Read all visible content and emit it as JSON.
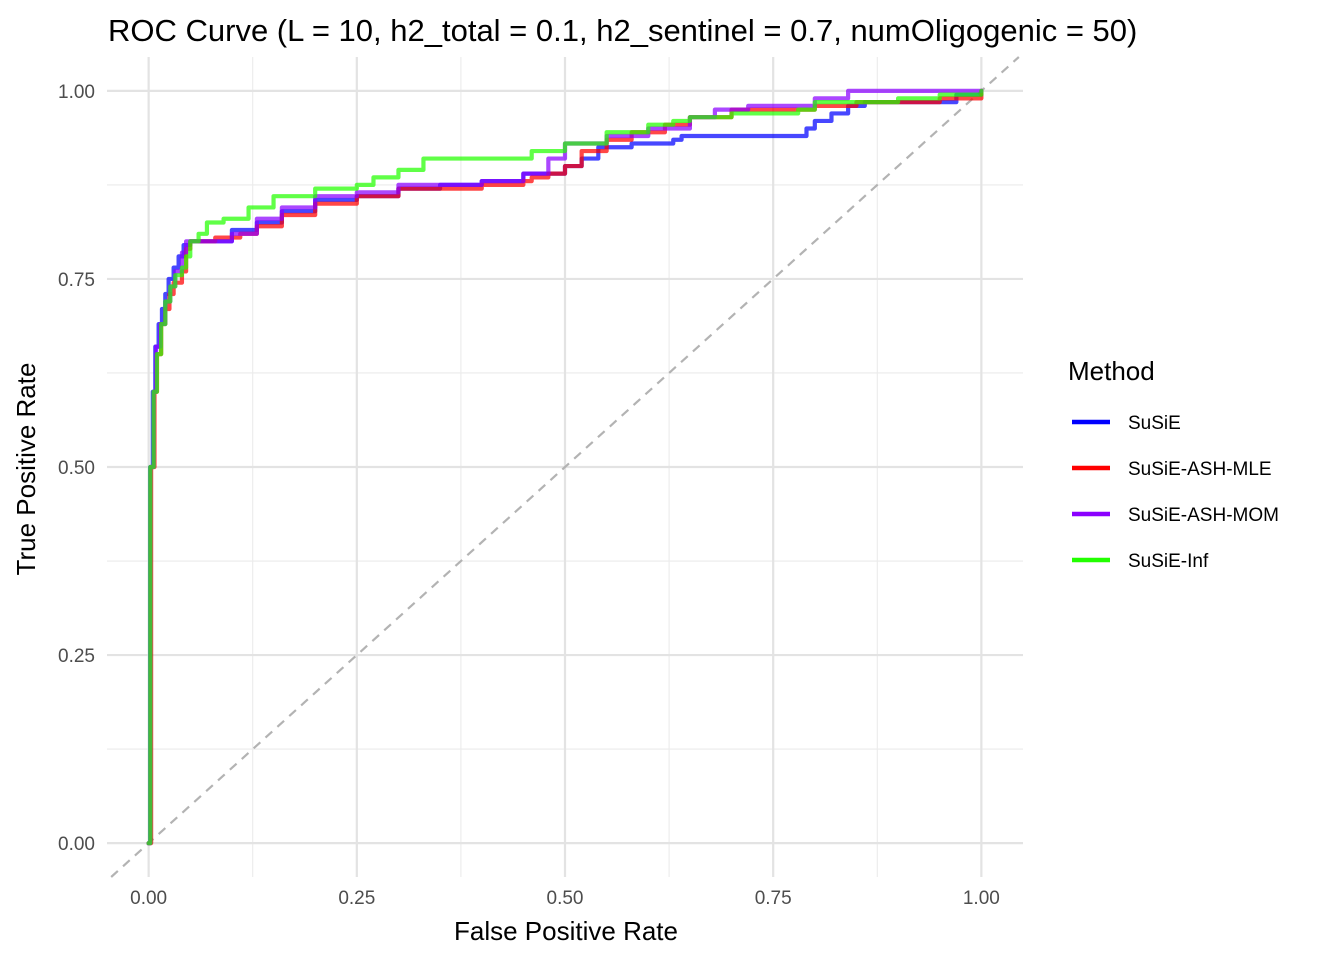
{
  "chart_data": {
    "type": "line",
    "title": "ROC Curve (L = 10, h2_total = 0.1, h2_sentinel = 0.7, numOligogenic = 50)",
    "xlabel": "False Positive Rate",
    "ylabel": "True Positive Rate",
    "xlim": [
      -0.05,
      1.05
    ],
    "ylim": [
      -0.045,
      1.045
    ],
    "x_ticks": [
      0,
      0.25,
      0.5,
      0.75,
      1
    ],
    "x_tick_labels": [
      "0.00",
      "0.25",
      "0.50",
      "0.75",
      "1.00"
    ],
    "y_ticks": [
      0,
      0.25,
      0.5,
      0.75,
      1
    ],
    "y_tick_labels": [
      "0.00",
      "0.25",
      "0.50",
      "0.75",
      "1.00"
    ],
    "grid": true,
    "legend": {
      "title": "Method",
      "position": "right"
    },
    "reference_line": {
      "style": "dashed",
      "color": "#b3b3b3",
      "from": [
        0,
        0
      ],
      "to": [
        1,
        1
      ]
    },
    "series": [
      {
        "name": "SuSiE",
        "color": "#0000ff",
        "points": [
          [
            0,
            0
          ],
          [
            0.002,
            0.5
          ],
          [
            0.005,
            0.6
          ],
          [
            0.008,
            0.66
          ],
          [
            0.012,
            0.69
          ],
          [
            0.016,
            0.71
          ],
          [
            0.02,
            0.73
          ],
          [
            0.024,
            0.75
          ],
          [
            0.03,
            0.765
          ],
          [
            0.036,
            0.78
          ],
          [
            0.042,
            0.795
          ],
          [
            0.05,
            0.8
          ],
          [
            0.08,
            0.8
          ],
          [
            0.1,
            0.815
          ],
          [
            0.13,
            0.825
          ],
          [
            0.16,
            0.84
          ],
          [
            0.2,
            0.855
          ],
          [
            0.25,
            0.86
          ],
          [
            0.3,
            0.87
          ],
          [
            0.35,
            0.875
          ],
          [
            0.4,
            0.88
          ],
          [
            0.45,
            0.89
          ],
          [
            0.5,
            0.9
          ],
          [
            0.52,
            0.91
          ],
          [
            0.54,
            0.925
          ],
          [
            0.58,
            0.93
          ],
          [
            0.63,
            0.935
          ],
          [
            0.64,
            0.94
          ],
          [
            0.78,
            0.94
          ],
          [
            0.79,
            0.95
          ],
          [
            0.8,
            0.96
          ],
          [
            0.82,
            0.97
          ],
          [
            0.84,
            0.98
          ],
          [
            0.86,
            0.985
          ],
          [
            0.95,
            0.985
          ],
          [
            0.97,
            0.995
          ],
          [
            1,
            1
          ]
        ]
      },
      {
        "name": "SuSiE-ASH-MLE",
        "color": "#ff0000",
        "points": [
          [
            0,
            0
          ],
          [
            0.003,
            0.5
          ],
          [
            0.007,
            0.6
          ],
          [
            0.01,
            0.65
          ],
          [
            0.015,
            0.69
          ],
          [
            0.02,
            0.71
          ],
          [
            0.025,
            0.73
          ],
          [
            0.03,
            0.745
          ],
          [
            0.04,
            0.76
          ],
          [
            0.045,
            0.79
          ],
          [
            0.05,
            0.8
          ],
          [
            0.075,
            0.8
          ],
          [
            0.08,
            0.805
          ],
          [
            0.11,
            0.81
          ],
          [
            0.13,
            0.82
          ],
          [
            0.16,
            0.835
          ],
          [
            0.2,
            0.85
          ],
          [
            0.25,
            0.86
          ],
          [
            0.3,
            0.87
          ],
          [
            0.4,
            0.875
          ],
          [
            0.45,
            0.88
          ],
          [
            0.46,
            0.885
          ],
          [
            0.48,
            0.89
          ],
          [
            0.5,
            0.9
          ],
          [
            0.52,
            0.92
          ],
          [
            0.55,
            0.935
          ],
          [
            0.58,
            0.945
          ],
          [
            0.62,
            0.955
          ],
          [
            0.65,
            0.965
          ],
          [
            0.7,
            0.975
          ],
          [
            0.8,
            0.98
          ],
          [
            0.85,
            0.985
          ],
          [
            0.95,
            0.99
          ],
          [
            1,
            1
          ]
        ]
      },
      {
        "name": "SuSiE-ASH-MOM",
        "color": "#8b00ff",
        "points": [
          [
            0,
            0
          ],
          [
            0.002,
            0.5
          ],
          [
            0.006,
            0.6
          ],
          [
            0.009,
            0.66
          ],
          [
            0.014,
            0.69
          ],
          [
            0.02,
            0.72
          ],
          [
            0.026,
            0.74
          ],
          [
            0.032,
            0.76
          ],
          [
            0.04,
            0.785
          ],
          [
            0.045,
            0.8
          ],
          [
            0.07,
            0.8
          ],
          [
            0.1,
            0.81
          ],
          [
            0.13,
            0.83
          ],
          [
            0.16,
            0.845
          ],
          [
            0.2,
            0.86
          ],
          [
            0.25,
            0.865
          ],
          [
            0.3,
            0.875
          ],
          [
            0.4,
            0.88
          ],
          [
            0.45,
            0.89
          ],
          [
            0.48,
            0.91
          ],
          [
            0.5,
            0.93
          ],
          [
            0.55,
            0.94
          ],
          [
            0.6,
            0.95
          ],
          [
            0.65,
            0.965
          ],
          [
            0.68,
            0.975
          ],
          [
            0.72,
            0.98
          ],
          [
            0.8,
            0.99
          ],
          [
            0.84,
            1
          ],
          [
            0.95,
            1
          ],
          [
            1,
            1
          ]
        ]
      },
      {
        "name": "SuSiE-Inf",
        "color": "#22ff00",
        "points": [
          [
            0,
            0
          ],
          [
            0.002,
            0.5
          ],
          [
            0.006,
            0.6
          ],
          [
            0.01,
            0.65
          ],
          [
            0.015,
            0.69
          ],
          [
            0.02,
            0.72
          ],
          [
            0.026,
            0.74
          ],
          [
            0.032,
            0.755
          ],
          [
            0.04,
            0.765
          ],
          [
            0.045,
            0.78
          ],
          [
            0.05,
            0.8
          ],
          [
            0.06,
            0.81
          ],
          [
            0.07,
            0.825
          ],
          [
            0.09,
            0.83
          ],
          [
            0.12,
            0.845
          ],
          [
            0.15,
            0.86
          ],
          [
            0.2,
            0.87
          ],
          [
            0.25,
            0.875
          ],
          [
            0.27,
            0.885
          ],
          [
            0.3,
            0.895
          ],
          [
            0.33,
            0.91
          ],
          [
            0.43,
            0.91
          ],
          [
            0.46,
            0.92
          ],
          [
            0.5,
            0.93
          ],
          [
            0.55,
            0.945
          ],
          [
            0.6,
            0.955
          ],
          [
            0.63,
            0.96
          ],
          [
            0.65,
            0.965
          ],
          [
            0.7,
            0.97
          ],
          [
            0.78,
            0.975
          ],
          [
            0.8,
            0.985
          ],
          [
            0.85,
            0.985
          ],
          [
            0.9,
            0.99
          ],
          [
            0.95,
            0.995
          ],
          [
            1,
            1
          ]
        ]
      }
    ]
  }
}
